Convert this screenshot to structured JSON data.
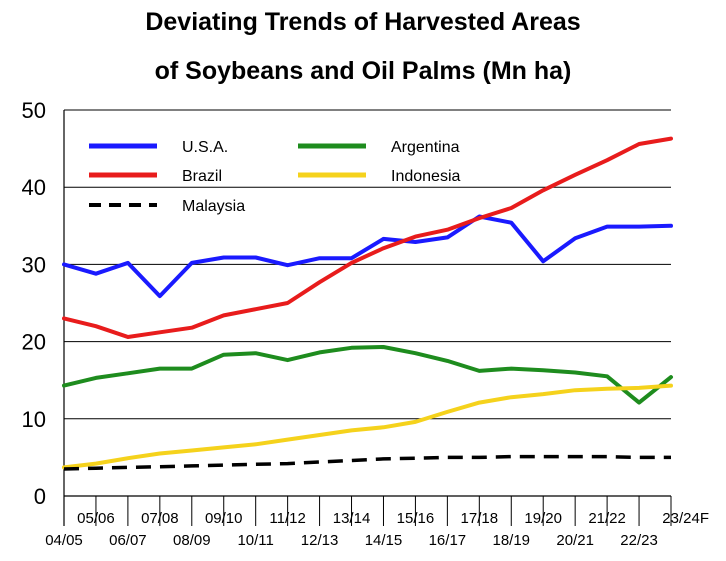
{
  "chart_data": {
    "type": "line",
    "title_line1": "Deviating Trends of Harvested Areas",
    "title_line2": "of Soybeans and Oil Palms (Mn ha)",
    "xlabel": "",
    "ylabel": "",
    "ylim": [
      0,
      50
    ],
    "yticks": [
      "0",
      "10",
      "20",
      "30",
      "40",
      "50"
    ],
    "categories": [
      "04/05",
      "05/06",
      "06/07",
      "07/08",
      "08/09",
      "09/10",
      "10/11",
      "11/12",
      "12/13",
      "13/14",
      "14/15",
      "15/16",
      "16/17",
      "17/18",
      "18/19",
      "19/20",
      "20/21",
      "21/22",
      "22/23",
      "23/24F"
    ],
    "grid": "horizontal",
    "legend_position": "top-left",
    "series": [
      {
        "name": "U.S.A.",
        "color": "#1a1aff",
        "style": "solid",
        "values": [
          30.0,
          28.8,
          30.2,
          25.9,
          30.2,
          30.9,
          30.9,
          29.9,
          30.8,
          30.8,
          33.3,
          32.9,
          33.5,
          36.2,
          35.4,
          30.4,
          33.4,
          34.9,
          34.9,
          35.0
        ]
      },
      {
        "name": "Brazil",
        "color": "#e81c1c",
        "style": "solid",
        "values": [
          23.0,
          22.0,
          20.6,
          21.2,
          21.8,
          23.4,
          24.2,
          25.0,
          27.7,
          30.2,
          32.1,
          33.6,
          34.5,
          36.0,
          37.3,
          39.6,
          41.6,
          43.5,
          45.6,
          46.3
        ]
      },
      {
        "name": "Argentina",
        "color": "#1e8c1e",
        "style": "solid",
        "values": [
          14.3,
          15.3,
          15.9,
          16.5,
          16.5,
          18.3,
          18.5,
          17.6,
          18.6,
          19.2,
          19.3,
          18.5,
          17.5,
          16.2,
          16.5,
          16.3,
          16.0,
          15.5,
          12.1,
          15.4
        ]
      },
      {
        "name": "Indonesia",
        "color": "#f5d21c",
        "style": "solid",
        "values": [
          3.7,
          4.2,
          4.9,
          5.5,
          5.9,
          6.3,
          6.7,
          7.3,
          7.9,
          8.5,
          8.9,
          9.6,
          10.9,
          12.1,
          12.8,
          13.2,
          13.7,
          13.9,
          14.0,
          14.3
        ]
      },
      {
        "name": "Malaysia",
        "color": "#000000",
        "style": "dashed",
        "values": [
          3.5,
          3.6,
          3.7,
          3.8,
          3.9,
          4.0,
          4.1,
          4.2,
          4.4,
          4.6,
          4.8,
          4.9,
          5.0,
          5.0,
          5.1,
          5.1,
          5.1,
          5.1,
          5.0,
          5.0
        ]
      }
    ]
  }
}
